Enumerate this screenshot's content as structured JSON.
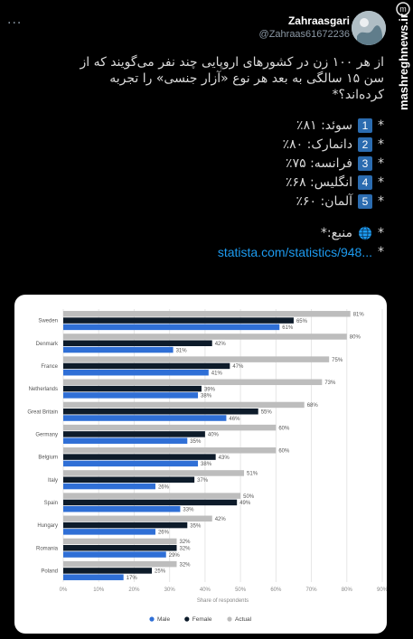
{
  "tweet": {
    "more_label": "...",
    "username": "Zahraasgari",
    "handle": "@Zahraas61672236",
    "watermark": "mashreghnews.ir",
    "line1": "از هر ۱۰۰ زن در کشورهای اروپایی چند نفر می‌گویند که از",
    "line2": "سن ۱۵ سالگی به بعد هر نوع «آزار جنسی» را تجربه",
    "line3": "کرده‌اند؟*",
    "items": [
      {
        "num": "1",
        "text": "سوئد: ۸۱٪"
      },
      {
        "num": "2",
        "text": "دانمارک: ۸۰٪"
      },
      {
        "num": "3",
        "text": "فرانسه: ۷۵٪"
      },
      {
        "num": "4",
        "text": "انگلیس: ۶۸٪"
      },
      {
        "num": "5",
        "text": "آلمان: ۶۰٪"
      }
    ],
    "source_label": "منبع:*",
    "source_link": "statista.com/statistics/948..."
  },
  "chart_data": {
    "type": "bar",
    "orientation": "horizontal",
    "categories": [
      "Sweden",
      "Denmark",
      "France",
      "Netherlands",
      "Great Britain",
      "Germany",
      "Belgium",
      "Italy",
      "Spain",
      "Hungary",
      "Romania",
      "Poland"
    ],
    "series": [
      {
        "name": "Actual",
        "color": "#bdbdbd",
        "values": [
          81,
          80,
          75,
          73,
          68,
          60,
          60,
          51,
          50,
          42,
          32,
          32
        ]
      },
      {
        "name": "Female",
        "color": "#0d1b2a",
        "values": [
          65,
          42,
          47,
          39,
          55,
          40,
          43,
          37,
          49,
          35,
          32,
          25
        ]
      },
      {
        "name": "Male",
        "color": "#2f6fd6",
        "values": [
          61,
          31,
          41,
          38,
          46,
          35,
          38,
          26,
          33,
          26,
          29,
          17
        ]
      }
    ],
    "xlim": [
      0,
      90
    ],
    "xticks": [
      "0%",
      "10%",
      "20%",
      "30%",
      "40%",
      "50%",
      "60%",
      "70%",
      "80%",
      "90%"
    ],
    "xlabel": "Share of respondents",
    "legend_order": [
      "Male",
      "Female",
      "Actual"
    ],
    "legend_position": "bottom",
    "grid": true
  }
}
